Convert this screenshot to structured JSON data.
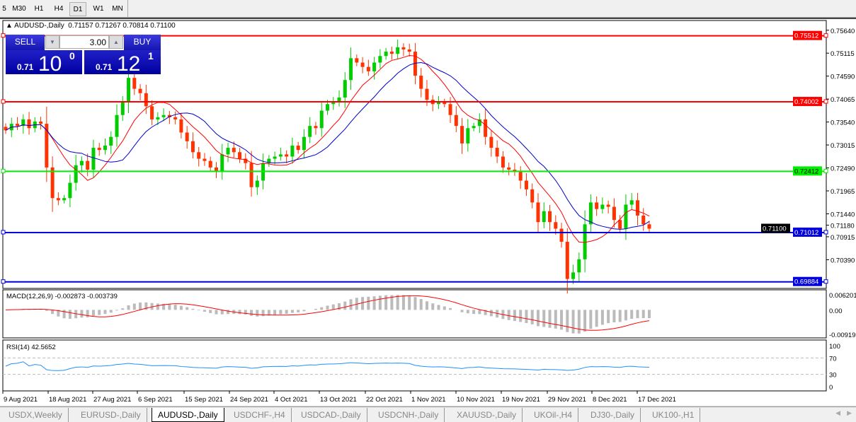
{
  "timeframes": [
    "5",
    "M30",
    "H1",
    "H4",
    "D1",
    "W1",
    "MN"
  ],
  "active_timeframe": "D1",
  "chart": {
    "symbol_title": "AUDUSD-,Daily",
    "ohlc": "0.71157 0.71267 0.70814 0.71100",
    "trade_panel": {
      "sell_label": "SELL",
      "buy_label": "BUY",
      "lot": "3.00",
      "sell_prefix": "0.71",
      "sell_big": "10",
      "sell_sup": "0",
      "buy_prefix": "0.71",
      "buy_big": "12",
      "buy_sup": "1"
    },
    "price_axis": [
      "0.75640",
      "0.75115",
      "0.74590",
      "0.74065",
      "0.73540",
      "0.73015",
      "0.72490",
      "0.71965",
      "0.71440",
      "0.71180",
      "0.70915",
      "0.70390"
    ],
    "price_range": [
      0.6975,
      0.7583
    ],
    "levels": [
      {
        "price": 0.75512,
        "label": "0.75512",
        "color": "#ff0000"
      },
      {
        "price": 0.74002,
        "label": "0.74002",
        "color": "#ff0000"
      },
      {
        "price": 0.72412,
        "label": "0.72412",
        "color": "#00ee00"
      },
      {
        "price": 0.71012,
        "label": "0.71012",
        "color": "#0000dd"
      },
      {
        "price": 0.69884,
        "label": "0.69884",
        "color": "#0000dd"
      }
    ],
    "current_price": {
      "price": 0.711,
      "label": "0.71100"
    },
    "closes": [
      0.7335,
      0.735,
      0.7345,
      0.736,
      0.734,
      0.7355,
      0.735,
      0.725,
      0.718,
      0.7175,
      0.718,
      0.7215,
      0.7255,
      0.7265,
      0.7245,
      0.7295,
      0.729,
      0.73,
      0.732,
      0.737,
      0.74,
      0.7455,
      0.743,
      0.742,
      0.739,
      0.736,
      0.7365,
      0.737,
      0.7365,
      0.736,
      0.733,
      0.731,
      0.7285,
      0.727,
      0.7265,
      0.725,
      0.724,
      0.728,
      0.7295,
      0.7285,
      0.727,
      0.726,
      0.7205,
      0.722,
      0.726,
      0.727,
      0.7275,
      0.728,
      0.7275,
      0.73,
      0.729,
      0.732,
      0.7345,
      0.734,
      0.738,
      0.7395,
      0.74,
      0.741,
      0.745,
      0.75,
      0.749,
      0.748,
      0.747,
      0.749,
      0.7505,
      0.7515,
      0.751,
      0.7525,
      0.752,
      0.7515,
      0.746,
      0.743,
      0.7405,
      0.7395,
      0.74,
      0.7395,
      0.737,
      0.7345,
      0.7305,
      0.734,
      0.7345,
      0.736,
      0.732,
      0.7295,
      0.7275,
      0.725,
      0.7245,
      0.724,
      0.722,
      0.72,
      0.717,
      0.7125,
      0.715,
      0.7125,
      0.711,
      0.708,
      0.6995,
      0.701,
      0.704,
      0.712,
      0.717,
      0.7155,
      0.7165,
      0.716,
      0.713,
      0.711,
      0.7165,
      0.7175,
      0.714,
      0.712,
      0.711
    ],
    "bull_color": "#00cc00",
    "bear_color": "#ff3300",
    "ma_fast_color": "#ff0000",
    "ma_slow_color": "#0000cc"
  },
  "macd": {
    "title": "MACD(12,26,9) -0.002873 -0.003739",
    "axis": [
      "0.006201",
      "0.00",
      "-0.009197"
    ]
  },
  "rsi": {
    "title": "RSI(14) 42.5652",
    "axis": [
      "100",
      "70",
      "30",
      "0"
    ],
    "color": "#1e90ff"
  },
  "dates": [
    "9 Aug 2021",
    "18 Aug 2021",
    "27 Aug 2021",
    "6 Sep 2021",
    "15 Sep 2021",
    "24 Sep 2021",
    "4 Oct 2021",
    "13 Oct 2021",
    "22 Oct 2021",
    "1 Nov 2021",
    "10 Nov 2021",
    "19 Nov 2021",
    "29 Nov 2021",
    "8 Dec 2021",
    "17 Dec 2021"
  ],
  "tabs": [
    "USDX,Weekly",
    "EURUSD-,Daily",
    "AUDUSD-,Daily",
    "USDCHF-,H4",
    "USDCAD-,Daily",
    "USDCNH-,Daily",
    "XAUUSD-,Daily",
    "UKOil-,H4",
    "DJ30-,Daily",
    "UK100-,H1"
  ],
  "active_tab": "AUDUSD-,Daily"
}
